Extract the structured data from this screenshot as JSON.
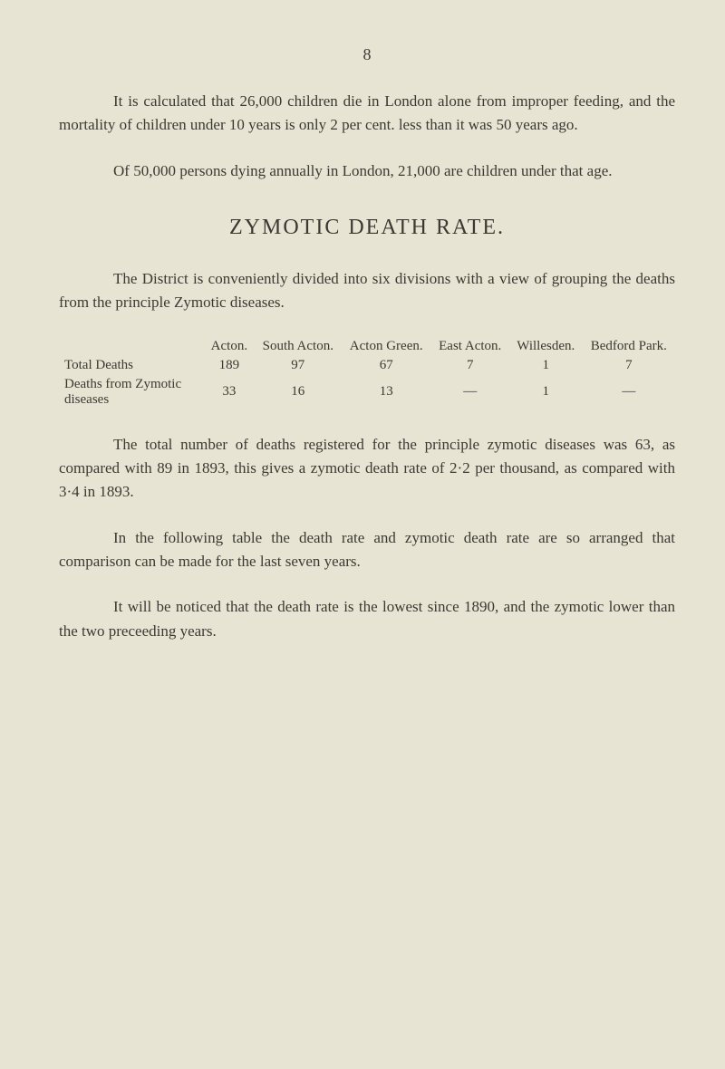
{
  "page_number": "8",
  "para1": "It is calculated that 26,000 children die in London alone from improper feeding, and the mortality of children under 10 years is only 2 per cent. less than it was 50 years ago.",
  "para2": "Of 50,000 persons dying annually in London, 21,000 are children under that age.",
  "heading": "ZYMOTIC DEATH RATE.",
  "para3": "The District is conveniently divided into six divisions with a view of grouping the deaths from the principle Zymotic diseases.",
  "table": {
    "columns": [
      "Acton.",
      "South Acton.",
      "Acton Green.",
      "East Acton.",
      "Willesden.",
      "Bedford Park."
    ],
    "rows": [
      {
        "label": "Total Deaths",
        "cells": [
          "189",
          "97",
          "67",
          "7",
          "1",
          "7"
        ]
      },
      {
        "label": "Deaths from Zymotic diseases",
        "cells": [
          "33",
          "16",
          "13",
          "—",
          "1",
          "—"
        ]
      }
    ]
  },
  "para4": "The total number of deaths registered for the principle zymotic diseases was 63, as compared with 89 in 1893, this gives a zymotic death rate of 2·2 per thousand, as compared with 3·4 in 1893.",
  "para5": "In the following table the death rate and zymotic death rate are so arranged that comparison can be made for the last seven years.",
  "para6": "It will be noticed that the death rate is the lowest since 1890, and the zymotic lower than the two preceeding years.",
  "colors": {
    "background": "#e8e4d4",
    "text": "#3a3a32"
  },
  "typography": {
    "body_fontsize": 17,
    "heading_fontsize": 24,
    "table_fontsize": 15,
    "line_height": 1.55,
    "font_family": "Georgia, Times New Roman, serif"
  }
}
